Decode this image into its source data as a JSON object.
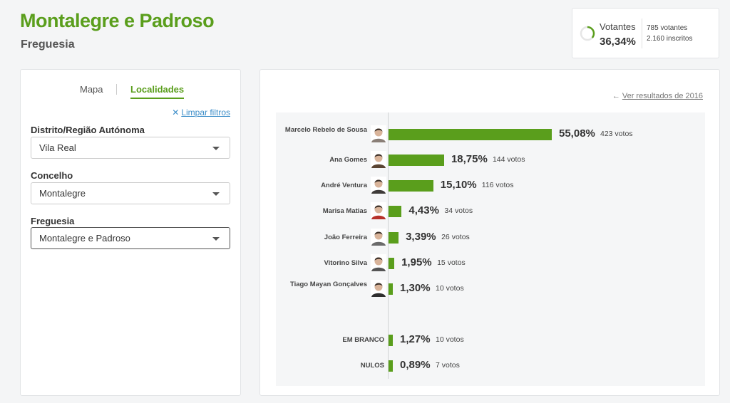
{
  "header": {
    "title": "Montalegre e Padroso",
    "subtitle": "Freguesia"
  },
  "turnout": {
    "label": "Votantes",
    "percent": "36,34%",
    "percent_value": 36.34,
    "voters": "785 votantes",
    "registered": "2.160 inscritos"
  },
  "filters": {
    "tabs": [
      {
        "label": "Mapa",
        "active": false
      },
      {
        "label": "Localidades",
        "active": true
      }
    ],
    "clear_label": "Limpar filtros",
    "fields": [
      {
        "label": "Distrito/Região Autónoma",
        "value": "Vila Real"
      },
      {
        "label": "Concelho",
        "value": "Montalegre"
      },
      {
        "label": "Freguesia",
        "value": "Montalegre e Padroso"
      }
    ]
  },
  "results": {
    "prev_link": "Ver resultados de 2016",
    "candidates": [
      {
        "name": "Marcelo Rebelo de Sousa",
        "pct": "55,08%",
        "votes": "423 votos",
        "value": 55.08,
        "has_photo": true,
        "avatar_color": "#8a7f77"
      },
      {
        "name": "Ana Gomes",
        "pct": "18,75%",
        "votes": "144 votos",
        "value": 18.75,
        "has_photo": true,
        "avatar_color": "#5a4433"
      },
      {
        "name": "André Ventura",
        "pct": "15,10%",
        "votes": "116 votos",
        "value": 15.1,
        "has_photo": true,
        "avatar_color": "#3e3a38"
      },
      {
        "name": "Marisa Matias",
        "pct": "4,43%",
        "votes": "34 votos",
        "value": 4.43,
        "has_photo": true,
        "avatar_color": "#b8322b"
      },
      {
        "name": "João Ferreira",
        "pct": "3,39%",
        "votes": "26 votos",
        "value": 3.39,
        "has_photo": true,
        "avatar_color": "#6b6b6b"
      },
      {
        "name": "Vitorino Silva",
        "pct": "1,95%",
        "votes": "15 votos",
        "value": 1.95,
        "has_photo": true,
        "avatar_color": "#555555"
      },
      {
        "name": "Tiago Mayan Gonçalves",
        "pct": "1,30%",
        "votes": "10 votos",
        "value": 1.3,
        "has_photo": true,
        "avatar_color": "#2f2f2f"
      },
      {
        "name": "EM BRANCO",
        "pct": "1,27%",
        "votes": "10 votos",
        "value": 1.27,
        "has_photo": false,
        "avatar_color": ""
      },
      {
        "name": "NULOS",
        "pct": "0,89%",
        "votes": "7 votos",
        "value": 0.89,
        "has_photo": false,
        "avatar_color": ""
      }
    ]
  },
  "colors": {
    "accent": "#5a9e1c",
    "link": "#3d8ec9"
  }
}
